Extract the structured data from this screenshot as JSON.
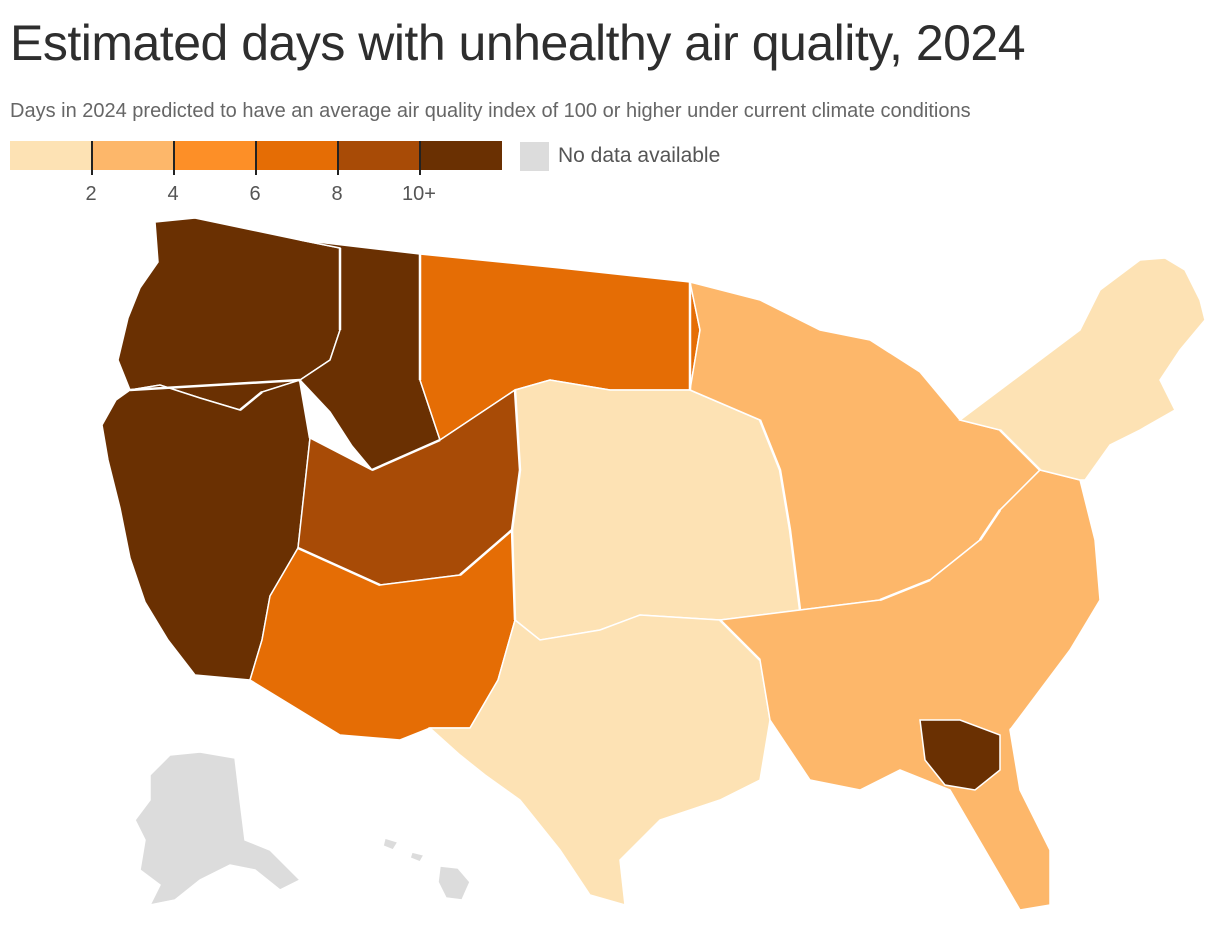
{
  "title": "Estimated days with unhealthy air quality, 2024",
  "subtitle": "Days in 2024 predicted to have an average air quality index of 100 or higher under current climate conditions",
  "legend": {
    "colors": [
      "#fde2b4",
      "#fdb76a",
      "#fd8f27",
      "#e56d05",
      "#a84b06",
      "#6a3002"
    ],
    "ticks": [
      "2",
      "4",
      "6",
      "8",
      "10+"
    ],
    "no_data": {
      "label": "No data available",
      "color": "#dcdcdc"
    }
  },
  "map": {
    "border_color": "#ffffff",
    "regions": [
      {
        "name": "Pacific Northwest & Northern Rockies",
        "class_index": 5
      },
      {
        "name": "California & Nevada",
        "class_index": 5
      },
      {
        "name": "Western Montana & Wyoming",
        "class_index": 5
      },
      {
        "name": "Eastern Montana & Dakotas",
        "class_index": 3
      },
      {
        "name": "Utah & Colorado",
        "class_index": 4
      },
      {
        "name": "Arizona & New Mexico",
        "class_index": 3
      },
      {
        "name": "Great Plains",
        "class_index": 0
      },
      {
        "name": "Midwest",
        "class_index": 1
      },
      {
        "name": "Texas",
        "class_index": 0
      },
      {
        "name": "Southeast",
        "class_index": 1
      },
      {
        "name": "Georgia",
        "class_index": 5
      },
      {
        "name": "Northeast",
        "class_index": 0
      },
      {
        "name": "Alaska",
        "class_index": -1
      },
      {
        "name": "Hawaii",
        "class_index": -1
      }
    ]
  }
}
